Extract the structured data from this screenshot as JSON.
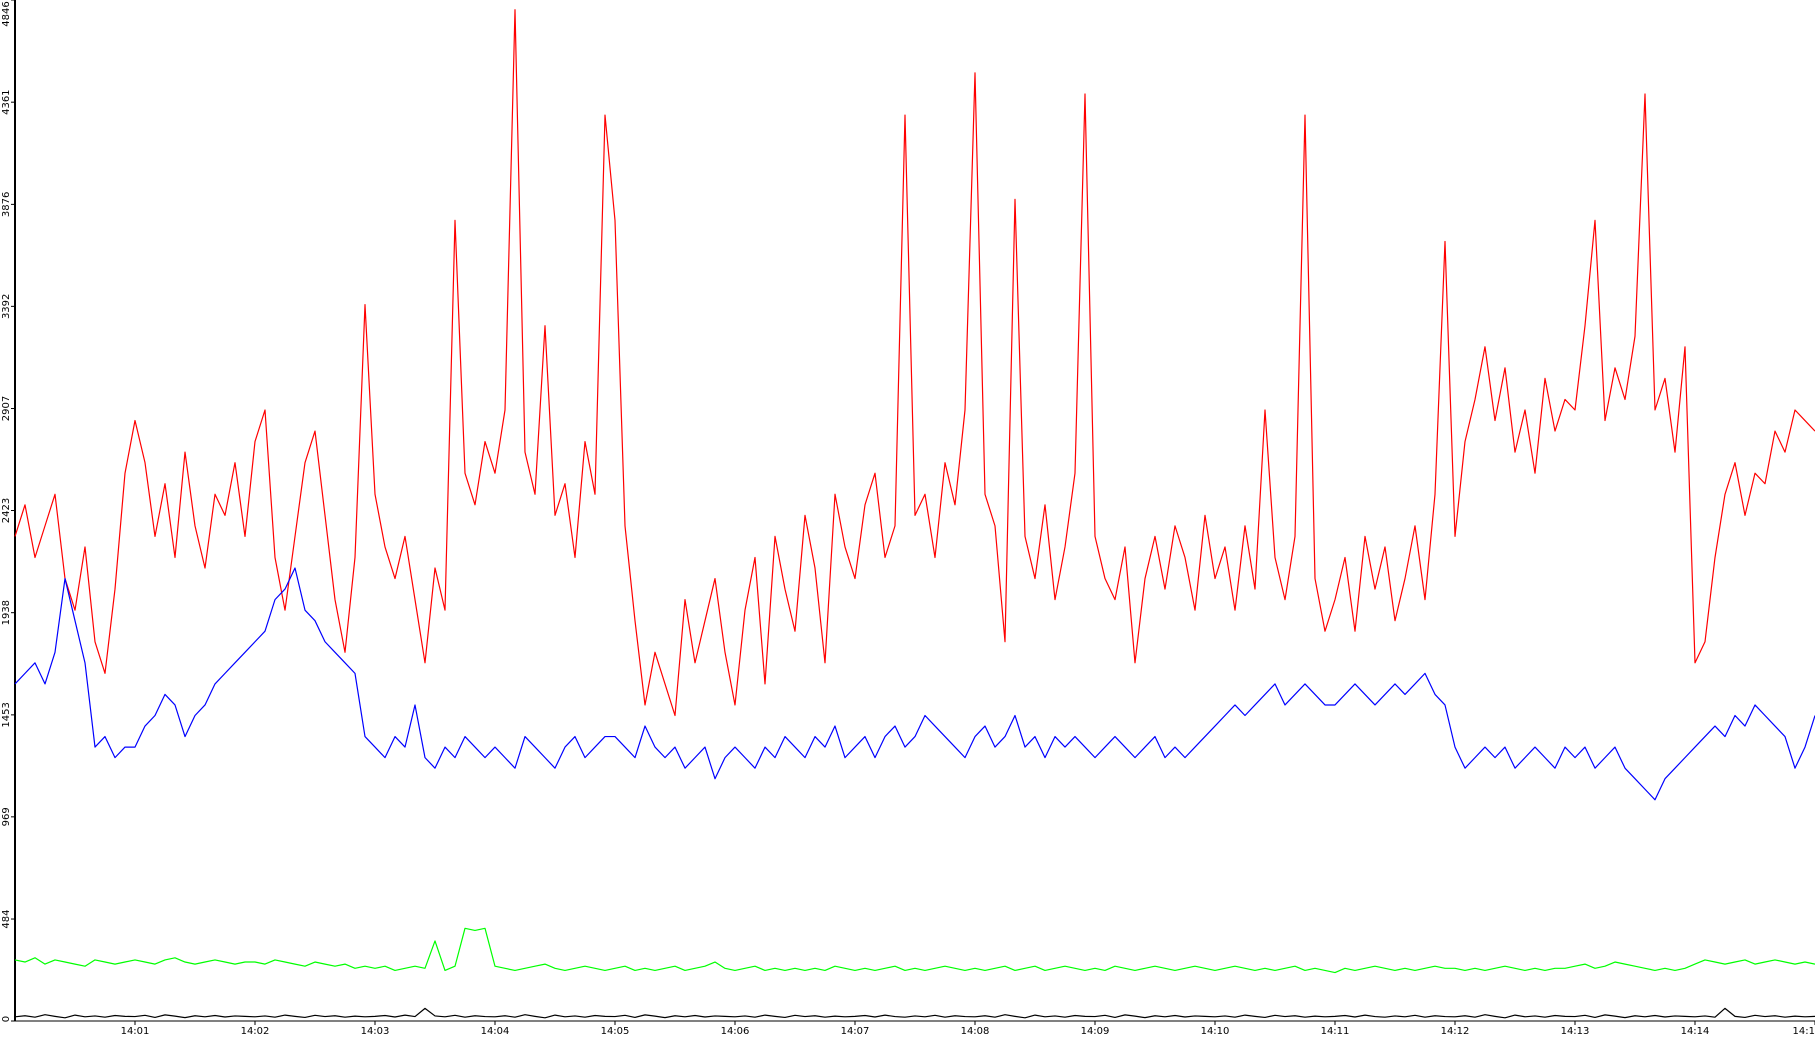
{
  "chart_data": {
    "type": "line",
    "categories": [
      null,
      null,
      null,
      null,
      null,
      null,
      null,
      null,
      null,
      null,
      null,
      null,
      "14:01",
      null,
      null,
      null,
      null,
      null,
      null,
      null,
      null,
      null,
      null,
      null,
      "14:02",
      null,
      null,
      null,
      null,
      null,
      null,
      null,
      null,
      null,
      null,
      null,
      "14:03",
      null,
      null,
      null,
      null,
      null,
      null,
      null,
      null,
      null,
      null,
      null,
      "14:04",
      null,
      null,
      null,
      null,
      null,
      null,
      null,
      null,
      null,
      null,
      null,
      "14:05",
      null,
      null,
      null,
      null,
      null,
      null,
      null,
      null,
      null,
      null,
      null,
      "14:06",
      null,
      null,
      null,
      null,
      null,
      null,
      null,
      null,
      null,
      null,
      null,
      "14:07",
      null,
      null,
      null,
      null,
      null,
      null,
      null,
      null,
      null,
      null,
      null,
      "14:08",
      null,
      null,
      null,
      null,
      null,
      null,
      null,
      null,
      null,
      null,
      null,
      "14:09",
      null,
      null,
      null,
      null,
      null,
      null,
      null,
      null,
      null,
      null,
      null,
      "14:10",
      null,
      null,
      null,
      null,
      null,
      null,
      null,
      null,
      null,
      null,
      null,
      "14:11",
      null,
      null,
      null,
      null,
      null,
      null,
      null,
      null,
      null,
      null,
      null,
      "14:12",
      null,
      null,
      null,
      null,
      null,
      null,
      null,
      null,
      null,
      null,
      null,
      "14:13",
      null,
      null,
      null,
      null,
      null,
      null,
      null,
      null,
      null,
      null,
      null,
      "14:14",
      null,
      null,
      null,
      null,
      null,
      null,
      null,
      null,
      null,
      null,
      null,
      "14:1"
    ],
    "series": [
      {
        "color": "#ff0000",
        "values": [
          2300,
          2450,
          2200,
          2350,
          2500,
          2100,
          1950,
          2250,
          1800,
          1650,
          2050,
          2600,
          2850,
          2650,
          2300,
          2550,
          2200,
          2700,
          2350,
          2150,
          2500,
          2400,
          2650,
          2300,
          2750,
          2900,
          2200,
          1950,
          2300,
          2650,
          2800,
          2400,
          2000,
          1750,
          2200,
          3400,
          2500,
          2250,
          2100,
          2300,
          2000,
          1700,
          2150,
          1950,
          3800,
          2600,
          2450,
          2750,
          2600,
          2900,
          4800,
          2700,
          2500,
          3300,
          2400,
          2550,
          2200,
          2750,
          2500,
          4300,
          3800,
          2350,
          1900,
          1500,
          1750,
          1600,
          1450,
          2000,
          1700,
          1900,
          2100,
          1750,
          1500,
          1950,
          2200,
          1600,
          2300,
          2050,
          1850,
          2400,
          2150,
          1700,
          2500,
          2250,
          2100,
          2450,
          2600,
          2200,
          2350,
          4300,
          2400,
          2500,
          2200,
          2650,
          2450,
          2900,
          4500,
          2500,
          2350,
          1800,
          3900,
          2300,
          2100,
          2450,
          2000,
          2250,
          2600,
          4400,
          2300,
          2100,
          2000,
          2250,
          1700,
          2100,
          2300,
          2050,
          2350,
          2200,
          1950,
          2400,
          2100,
          2250,
          1950,
          2350,
          2050,
          2900,
          2200,
          2000,
          2300,
          4300,
          2100,
          1850,
          2000,
          2200,
          1850,
          2300,
          2050,
          2250,
          1900,
          2100,
          2350,
          2000,
          2500,
          3700,
          2300,
          2750,
          2950,
          3200,
          2850,
          3100,
          2700,
          2900,
          2600,
          3050,
          2800,
          2950,
          2900,
          3300,
          3800,
          2850,
          3100,
          2950,
          3250,
          4400,
          2900,
          3050,
          2700,
          3200,
          1700,
          1800,
          2200,
          2500,
          2650,
          2400,
          2600,
          2550,
          2800,
          2700,
          2900,
          2850,
          2800
        ]
      },
      {
        "color": "#0000ff",
        "values": [
          1600,
          1650,
          1700,
          1600,
          1750,
          2100,
          1900,
          1700,
          1300,
          1350,
          1250,
          1300,
          1300,
          1400,
          1450,
          1550,
          1500,
          1350,
          1450,
          1500,
          1600,
          1650,
          1700,
          1750,
          1800,
          1850,
          2000,
          2050,
          2150,
          1950,
          1900,
          1800,
          1750,
          1700,
          1650,
          1350,
          1300,
          1250,
          1350,
          1300,
          1500,
          1250,
          1200,
          1300,
          1250,
          1350,
          1300,
          1250,
          1300,
          1250,
          1200,
          1350,
          1300,
          1250,
          1200,
          1300,
          1350,
          1250,
          1300,
          1350,
          1350,
          1300,
          1250,
          1400,
          1300,
          1250,
          1300,
          1200,
          1250,
          1300,
          1150,
          1250,
          1300,
          1250,
          1200,
          1300,
          1250,
          1350,
          1300,
          1250,
          1350,
          1300,
          1400,
          1250,
          1300,
          1350,
          1250,
          1350,
          1400,
          1300,
          1350,
          1450,
          1400,
          1350,
          1300,
          1250,
          1350,
          1400,
          1300,
          1350,
          1450,
          1300,
          1350,
          1250,
          1350,
          1300,
          1350,
          1300,
          1250,
          1300,
          1350,
          1300,
          1250,
          1300,
          1350,
          1250,
          1300,
          1250,
          1300,
          1350,
          1400,
          1450,
          1500,
          1450,
          1500,
          1550,
          1600,
          1500,
          1550,
          1600,
          1550,
          1500,
          1500,
          1550,
          1600,
          1550,
          1500,
          1550,
          1600,
          1550,
          1600,
          1650,
          1550,
          1500,
          1300,
          1200,
          1250,
          1300,
          1250,
          1300,
          1200,
          1250,
          1300,
          1250,
          1200,
          1300,
          1250,
          1300,
          1200,
          1250,
          1300,
          1200,
          1150,
          1100,
          1050,
          1150,
          1200,
          1250,
          1300,
          1350,
          1400,
          1350,
          1450,
          1400,
          1500,
          1450,
          1400,
          1350,
          1200,
          1300,
          1450
        ]
      },
      {
        "color": "#00ff00",
        "values": [
          290,
          280,
          300,
          270,
          290,
          280,
          270,
          260,
          290,
          280,
          270,
          280,
          290,
          280,
          270,
          290,
          300,
          280,
          270,
          280,
          290,
          280,
          270,
          280,
          280,
          270,
          290,
          280,
          270,
          260,
          280,
          270,
          260,
          270,
          250,
          260,
          250,
          260,
          240,
          250,
          260,
          250,
          380,
          240,
          260,
          440,
          430,
          440,
          260,
          250,
          240,
          250,
          260,
          270,
          250,
          240,
          250,
          260,
          250,
          240,
          250,
          260,
          240,
          250,
          240,
          250,
          260,
          240,
          250,
          260,
          280,
          250,
          240,
          250,
          260,
          240,
          250,
          240,
          250,
          240,
          250,
          240,
          260,
          250,
          240,
          250,
          240,
          250,
          260,
          240,
          250,
          240,
          250,
          260,
          250,
          240,
          250,
          240,
          250,
          260,
          240,
          250,
          260,
          240,
          250,
          260,
          250,
          240,
          250,
          240,
          260,
          250,
          240,
          250,
          260,
          250,
          240,
          250,
          260,
          250,
          240,
          250,
          260,
          250,
          240,
          250,
          240,
          250,
          260,
          240,
          250,
          240,
          230,
          250,
          240,
          250,
          260,
          250,
          240,
          250,
          240,
          250,
          260,
          250,
          250,
          240,
          250,
          240,
          250,
          260,
          250,
          240,
          250,
          240,
          250,
          250,
          260,
          270,
          250,
          260,
          280,
          270,
          260,
          250,
          240,
          250,
          240,
          250,
          270,
          290,
          280,
          270,
          280,
          290,
          270,
          280,
          290,
          280,
          270,
          280,
          270
        ]
      },
      {
        "color": "#000000",
        "values": [
          20,
          25,
          18,
          30,
          22,
          15,
          28,
          20,
          24,
          18,
          26,
          22,
          21,
          27,
          17,
          29,
          23,
          16,
          25,
          20,
          26,
          19,
          24,
          22,
          20,
          24,
          18,
          28,
          22,
          17,
          27,
          21,
          25,
          18,
          23,
          20,
          22,
          26,
          19,
          28,
          21,
          60,
          24,
          20,
          27,
          18,
          25,
          21,
          20,
          25,
          18,
          30,
          22,
          15,
          28,
          20,
          24,
          18,
          26,
          22,
          21,
          27,
          17,
          29,
          23,
          16,
          25,
          20,
          26,
          19,
          24,
          22,
          20,
          24,
          18,
          28,
          22,
          17,
          27,
          21,
          25,
          18,
          23,
          20,
          22,
          26,
          19,
          28,
          21,
          18,
          24,
          20,
          27,
          18,
          25,
          21,
          20,
          25,
          18,
          30,
          22,
          15,
          28,
          20,
          24,
          18,
          26,
          22,
          21,
          27,
          17,
          29,
          23,
          16,
          25,
          20,
          26,
          19,
          24,
          22,
          20,
          24,
          18,
          28,
          22,
          17,
          27,
          21,
          25,
          18,
          23,
          20,
          22,
          26,
          19,
          28,
          21,
          18,
          24,
          20,
          27,
          18,
          25,
          21,
          20,
          25,
          18,
          30,
          22,
          15,
          28,
          20,
          24,
          18,
          26,
          22,
          21,
          27,
          17,
          29,
          23,
          16,
          25,
          20,
          26,
          19,
          24,
          22,
          20,
          24,
          18,
          60,
          22,
          17,
          27,
          21,
          25,
          18,
          23,
          20,
          22
        ]
      }
    ],
    "ylim": [
      0,
      4846
    ],
    "yticks": [
      0,
      484,
      969,
      1453,
      1938,
      2423,
      2907,
      3392,
      3876,
      4361,
      4846
    ]
  }
}
